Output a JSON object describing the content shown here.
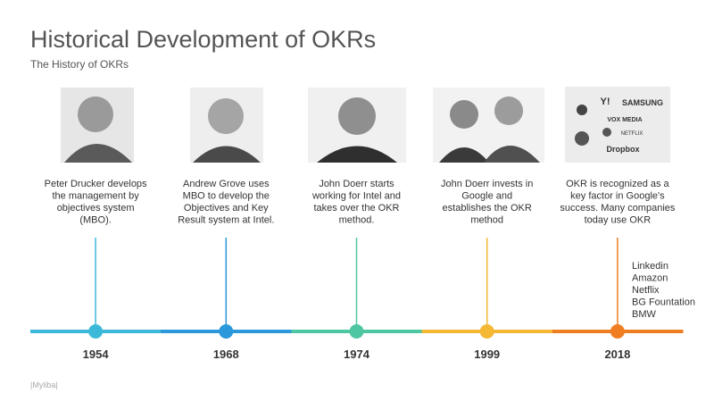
{
  "header": {
    "title": "Historical Development of OKRs",
    "subtitle": "The History of OKRs"
  },
  "events": [
    {
      "year": "1954",
      "color": "#3cb9d8",
      "description": [
        "Peter Drucker develops",
        "the management by",
        "objectives system",
        "(MBO)."
      ]
    },
    {
      "year": "1968",
      "color": "#2b98db",
      "description": [
        "Andrew Grove uses",
        "MBO to develop the",
        "Objectives and Key",
        "Result system at Intel."
      ]
    },
    {
      "year": "1974",
      "color": "#4fc6a2",
      "description": [
        "John Doerr starts",
        "working for Intel and",
        "takes over the OKR",
        "method."
      ]
    },
    {
      "year": "1999",
      "color": "#f4b834",
      "description": [
        "John Doerr invests in",
        "Google and",
        "establishes the OKR",
        "method"
      ]
    },
    {
      "year": "2018",
      "color": "#ef7e22",
      "description": [
        "OKR is recognized as a",
        "key factor in Google's",
        "success. Many companies",
        "today use OKR"
      ]
    }
  ],
  "logos": [
    "Y!",
    "SAMSUNG",
    "VOX MEDIA",
    "NETFLIX",
    "Dropbox"
  ],
  "companies": [
    "Linkedin",
    "Amazon",
    "Netflix",
    "BG Fountation",
    "BMW"
  ],
  "footer": "|Myliba|"
}
